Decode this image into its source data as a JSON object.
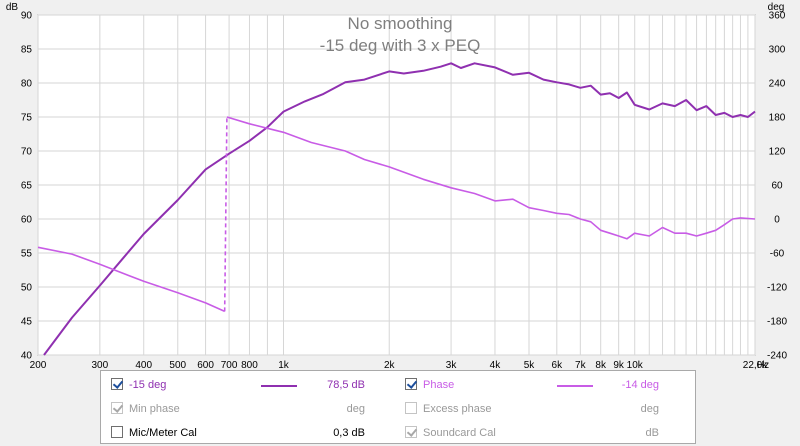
{
  "colors": {
    "plot_bg": "#ffffff",
    "grid": "#d6d6d6",
    "spl_curve": "#8f30b0",
    "phase_curve": "#c85ce6",
    "axis_text": "#000000",
    "title_text": "#7f7f7f",
    "disabled_text": "#999999"
  },
  "chart_data": {
    "type": "line",
    "title": "No smoothing",
    "subtitle": "-15 deg with 3 x PEQ",
    "x_scale": "log",
    "xlim": [
      200,
      22000
    ],
    "ylim_left": [
      40,
      90
    ],
    "ylim_right": [
      -240,
      360
    ],
    "left_unit": "dB",
    "right_unit": "deg",
    "x_unit": "Hz",
    "x_ticks": [
      200,
      300,
      400,
      500,
      600,
      700,
      800,
      1000,
      2000,
      3000,
      4000,
      5000,
      6000,
      7000,
      8000,
      9000,
      10000,
      22000
    ],
    "x_tick_labels": [
      "200",
      "300",
      "400",
      "500",
      "600",
      "700",
      "800",
      "1k",
      "2k",
      "3k",
      "4k",
      "5k",
      "6k",
      "7k",
      "8k",
      "9k",
      "10k",
      "22,0k"
    ],
    "y_left_ticks": [
      40,
      45,
      50,
      55,
      60,
      65,
      70,
      75,
      80,
      85,
      90
    ],
    "y_left_tick_labels": [
      "40",
      "45",
      "50",
      "55",
      "60",
      "65",
      "70",
      "75",
      "80",
      "85",
      "90"
    ],
    "y_right_ticks": [
      -240,
      -180,
      -120,
      -60,
      0,
      60,
      120,
      180,
      240,
      300,
      360
    ],
    "y_right_tick_labels": [
      "-240",
      "-180",
      "-120",
      "-60",
      "0",
      "60",
      "120",
      "180",
      "240",
      "300",
      "360"
    ],
    "grid": true,
    "series": [
      {
        "name": "-15 deg",
        "axis": "left",
        "x": [
          208,
          250,
          300,
          350,
          400,
          500,
          600,
          700,
          800,
          900,
          1000,
          1150,
          1300,
          1500,
          1700,
          2000,
          2200,
          2500,
          2800,
          3000,
          3200,
          3500,
          4000,
          4500,
          5000,
          5500,
          6000,
          6500,
          7000,
          7500,
          8000,
          8500,
          9000,
          9500,
          10000,
          11000,
          12000,
          13000,
          14000,
          15000,
          16000,
          17000,
          18000,
          19000,
          20000,
          21000,
          22000
        ],
        "values": [
          40,
          45.5,
          50.2,
          54.3,
          57.8,
          62.8,
          67.3,
          69.6,
          71.5,
          73.5,
          75.8,
          77.3,
          78.4,
          80.1,
          80.5,
          81.7,
          81.4,
          81.8,
          82.4,
          82.9,
          82.2,
          82.9,
          82.3,
          81.2,
          81.5,
          80.5,
          80.1,
          79.8,
          79.3,
          79.6,
          78.3,
          78.5,
          77.8,
          78.6,
          76.8,
          76.1,
          77.0,
          76.6,
          77.5,
          76.0,
          76.6,
          75.3,
          75.6,
          75.0,
          75.3,
          75.0,
          75.8
        ]
      },
      {
        "name": "Phase",
        "axis": "right",
        "x": [
          200,
          250,
          300,
          400,
          500,
          600,
          680,
          690,
          800,
          900,
          1000,
          1200,
          1500,
          1700,
          2000,
          2500,
          3000,
          3500,
          4000,
          4500,
          5000,
          5500,
          6000,
          6500,
          7000,
          7500,
          8000,
          8500,
          9000,
          9500,
          10000,
          11000,
          12000,
          13000,
          14000,
          15000,
          16000,
          17000,
          18000,
          19000,
          20000,
          22000
        ],
        "values": [
          -50,
          -62,
          -80,
          -110,
          -130,
          -148,
          -163,
          180,
          168,
          160,
          153,
          135,
          120,
          105,
          92,
          70,
          55,
          45,
          32,
          35,
          20,
          15,
          10,
          8,
          0,
          -5,
          -20,
          -25,
          -30,
          -35,
          -25,
          -30,
          -15,
          -25,
          -25,
          -30,
          -25,
          -20,
          -10,
          0,
          2,
          0
        ]
      }
    ]
  },
  "legend": {
    "rows": [
      {
        "checked": true,
        "enabled": true,
        "label": "-15 deg",
        "swatch": true,
        "value": "78,5 dB",
        "checked2": true,
        "enabled2": true,
        "label2": "Phase",
        "swatch2": true,
        "value2": "-14 deg"
      },
      {
        "checked": true,
        "enabled": false,
        "label": "Min phase",
        "swatch": false,
        "value": "deg",
        "checked2": false,
        "enabled2": false,
        "label2": "Excess phase",
        "swatch2": false,
        "value2": "deg"
      },
      {
        "checked": false,
        "enabled": true,
        "label": "Mic/Meter Cal",
        "swatch": false,
        "value": "0,3 dB",
        "checked2": true,
        "enabled2": false,
        "label2": "Soundcard Cal",
        "swatch2": false,
        "value2": "dB"
      }
    ]
  }
}
